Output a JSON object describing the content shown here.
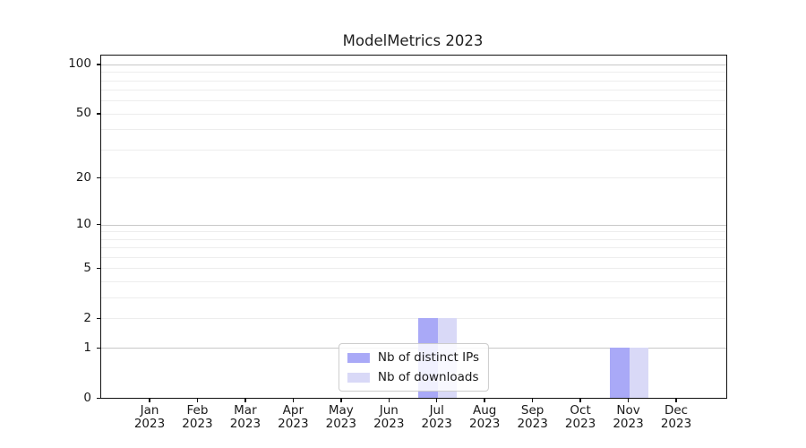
{
  "chart_data": {
    "type": "bar",
    "title": "ModelMetrics 2023",
    "categories": [
      "Jan",
      "Feb",
      "Mar",
      "Apr",
      "May",
      "Jun",
      "Jul",
      "Aug",
      "Sep",
      "Oct",
      "Nov",
      "Dec"
    ],
    "category_year": "2023",
    "series": [
      {
        "name": "Nb of distinct IPs",
        "color": "#a9a9f7",
        "values": [
          0,
          0,
          0,
          0,
          0,
          0,
          2,
          0,
          0,
          0,
          1,
          0
        ]
      },
      {
        "name": "Nb of downloads",
        "color": "#d9d9f7",
        "values": [
          0,
          0,
          0,
          0,
          0,
          0,
          2,
          0,
          0,
          0,
          1,
          0
        ]
      }
    ],
    "yscale": "log1p",
    "yticks": [
      0,
      1,
      2,
      5,
      10,
      20,
      50,
      100
    ],
    "ylim": [
      0,
      113
    ],
    "grid": {
      "major_values": [
        1,
        10,
        100
      ],
      "minor_values": [
        2,
        3,
        4,
        5,
        6,
        7,
        8,
        9,
        20,
        30,
        40,
        50,
        60,
        70,
        80,
        90
      ]
    },
    "legend_position": "lower center",
    "xlabel": "",
    "ylabel": ""
  }
}
